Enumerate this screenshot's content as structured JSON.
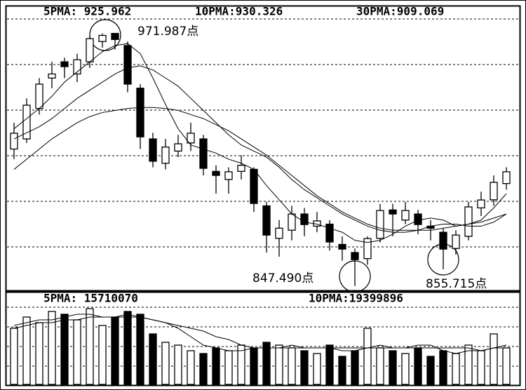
{
  "chart_data": [
    {
      "type": "candlestick",
      "header": [
        "5PMA: 925.962",
        "10PMA:930.326",
        "30PMA:909.069"
      ],
      "annotations": [
        "971.987点",
        "847.490点",
        "855.715点"
      ],
      "ylim": [
        845,
        985
      ],
      "open": [
        915,
        920,
        935,
        950,
        958,
        952,
        958,
        968,
        972,
        966,
        945,
        920,
        908,
        914,
        918,
        920,
        904,
        900,
        904,
        905,
        887,
        871,
        875,
        883,
        877,
        878,
        868,
        864,
        861,
        871,
        885,
        880,
        883,
        877,
        874,
        866,
        872,
        886,
        890,
        898
      ],
      "high": [
        928,
        940,
        950,
        958,
        960,
        962,
        971,
        971.987,
        971.5,
        968,
        947,
        923,
        920,
        922,
        928,
        922,
        907,
        906,
        912,
        906,
        889,
        880,
        887,
        886,
        884,
        880,
        872,
        866,
        872,
        888,
        888,
        889,
        885,
        880,
        876,
        875,
        889,
        894,
        902,
        906
      ],
      "low": [
        910,
        918,
        932,
        945,
        950,
        948,
        955,
        965,
        964,
        943,
        915,
        906,
        905,
        911,
        914,
        902,
        893,
        893,
        900,
        884,
        864,
        862,
        870,
        872,
        874,
        865,
        860,
        847.49,
        858,
        869,
        872,
        878,
        873,
        870,
        855.715,
        863,
        870,
        882,
        887,
        895
      ],
      "close": [
        922.8,
        936.6,
        947,
        952,
        955.6,
        959,
        969.4,
        971,
        969,
        947,
        921,
        909,
        916,
        917.6,
        922.8,
        905.5,
        902,
        903.8,
        907,
        888.2,
        872.6,
        876,
        883,
        877.8,
        879.6,
        869.2,
        865.7,
        860.5,
        870.9,
        884.7,
        883,
        884.7,
        877.8,
        876,
        865.7,
        872.6,
        886.5,
        889.9,
        898.6,
        903.8
      ],
      "lines": [
        {
          "values": [
            925,
            930,
            935,
            941,
            948,
            953,
            958,
            963,
            966,
            967,
            962,
            950,
            937,
            925,
            917,
            915,
            913,
            910,
            908,
            905,
            897,
            890,
            883,
            879,
            878,
            876,
            874,
            870,
            869,
            870,
            873,
            877,
            880,
            881,
            880,
            877,
            878,
            880,
            886,
            893
          ]
        },
        {
          "values": [
            920,
            923,
            926,
            930,
            935,
            940,
            944,
            948,
            952,
            955,
            956,
            954,
            950,
            946,
            940,
            934,
            928,
            922,
            917,
            914,
            911,
            906,
            900,
            895,
            891,
            887,
            883,
            880,
            877,
            875,
            874,
            874,
            875,
            877,
            878,
            878,
            877,
            877,
            879,
            883
          ]
        },
        {
          "values": [
            905,
            910,
            915,
            920,
            924,
            928,
            931,
            933,
            934,
            935,
            935.5,
            935.5,
            935,
            934,
            932,
            930,
            927,
            924,
            920,
            916,
            912,
            907,
            902,
            897,
            892,
            888,
            884,
            881,
            878,
            876,
            875,
            875,
            875,
            875,
            876,
            877,
            878,
            879,
            881,
            883
          ]
        }
      ]
    },
    {
      "type": "bar",
      "header": [
        "5PMA:  15710070",
        "10PMA:19399896"
      ],
      "ylim": [
        0,
        32000000
      ],
      "values": [
        20000000,
        24000000,
        22000000,
        26000000,
        25000000,
        23000000,
        27000000,
        21000000,
        24000000,
        26000000,
        25000000,
        18000000,
        15000000,
        14000000,
        12000000,
        11000000,
        13000000,
        12000000,
        14000000,
        13000000,
        15000000,
        14000000,
        13000000,
        12000000,
        11000000,
        14000000,
        10000000,
        12000000,
        20000000,
        13000000,
        12000000,
        11000000,
        13000000,
        10000000,
        12000000,
        11000000,
        14000000,
        12000000,
        18000000,
        13000000
      ],
      "lines": [
        {
          "values": [
            21000000,
            22000000,
            23000000,
            23000000,
            24000000,
            25000000,
            25000000,
            24000000,
            24000000,
            25000000,
            24000000,
            23000000,
            22000000,
            20000000,
            17000000,
            14000000,
            13000000,
            12000000,
            12000000,
            13000000,
            13000000,
            13000000,
            14000000,
            13000000,
            13000000,
            13000000,
            12000000,
            12000000,
            13000000,
            14000000,
            13000000,
            13000000,
            14000000,
            14000000,
            12000000,
            11000000,
            12000000,
            12000000,
            13000000,
            14000000
          ]
        },
        {
          "values": [
            20000000,
            21000000,
            22000000,
            22000000,
            23000000,
            23000000,
            24000000,
            24000000,
            24000000,
            24000000,
            24000000,
            23000000,
            22000000,
            21000000,
            20000000,
            19000000,
            17000000,
            16000000,
            14000000,
            13000000,
            13000000,
            13000000,
            13000000,
            13000000,
            13000000,
            13000000,
            13000000,
            13000000,
            13000000,
            13000000,
            13000000,
            13000000,
            13000000,
            13000000,
            13000000,
            13000000,
            13000000,
            12000000,
            13000000,
            13000000
          ]
        }
      ]
    }
  ]
}
